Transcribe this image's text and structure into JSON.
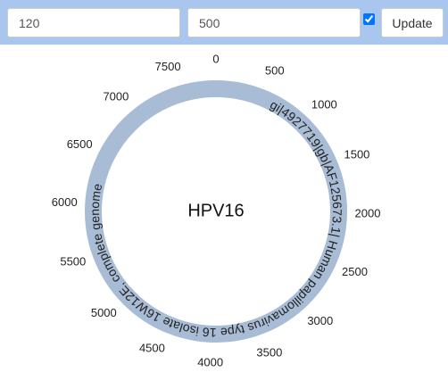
{
  "controls": {
    "start": "120",
    "end": "500",
    "show_label": true,
    "button": "Update"
  },
  "plot": {
    "center_label": "HPV16",
    "track_label": "gi|4927719|gb|AF125673.1| Human papillomavirus type 16 isolate 16W12E, complete genome",
    "ticks": [
      0,
      500,
      1000,
      1500,
      2000,
      2500,
      3000,
      3500,
      4000,
      4500,
      5000,
      5500,
      6000,
      6500,
      7000,
      7500
    ]
  }
}
